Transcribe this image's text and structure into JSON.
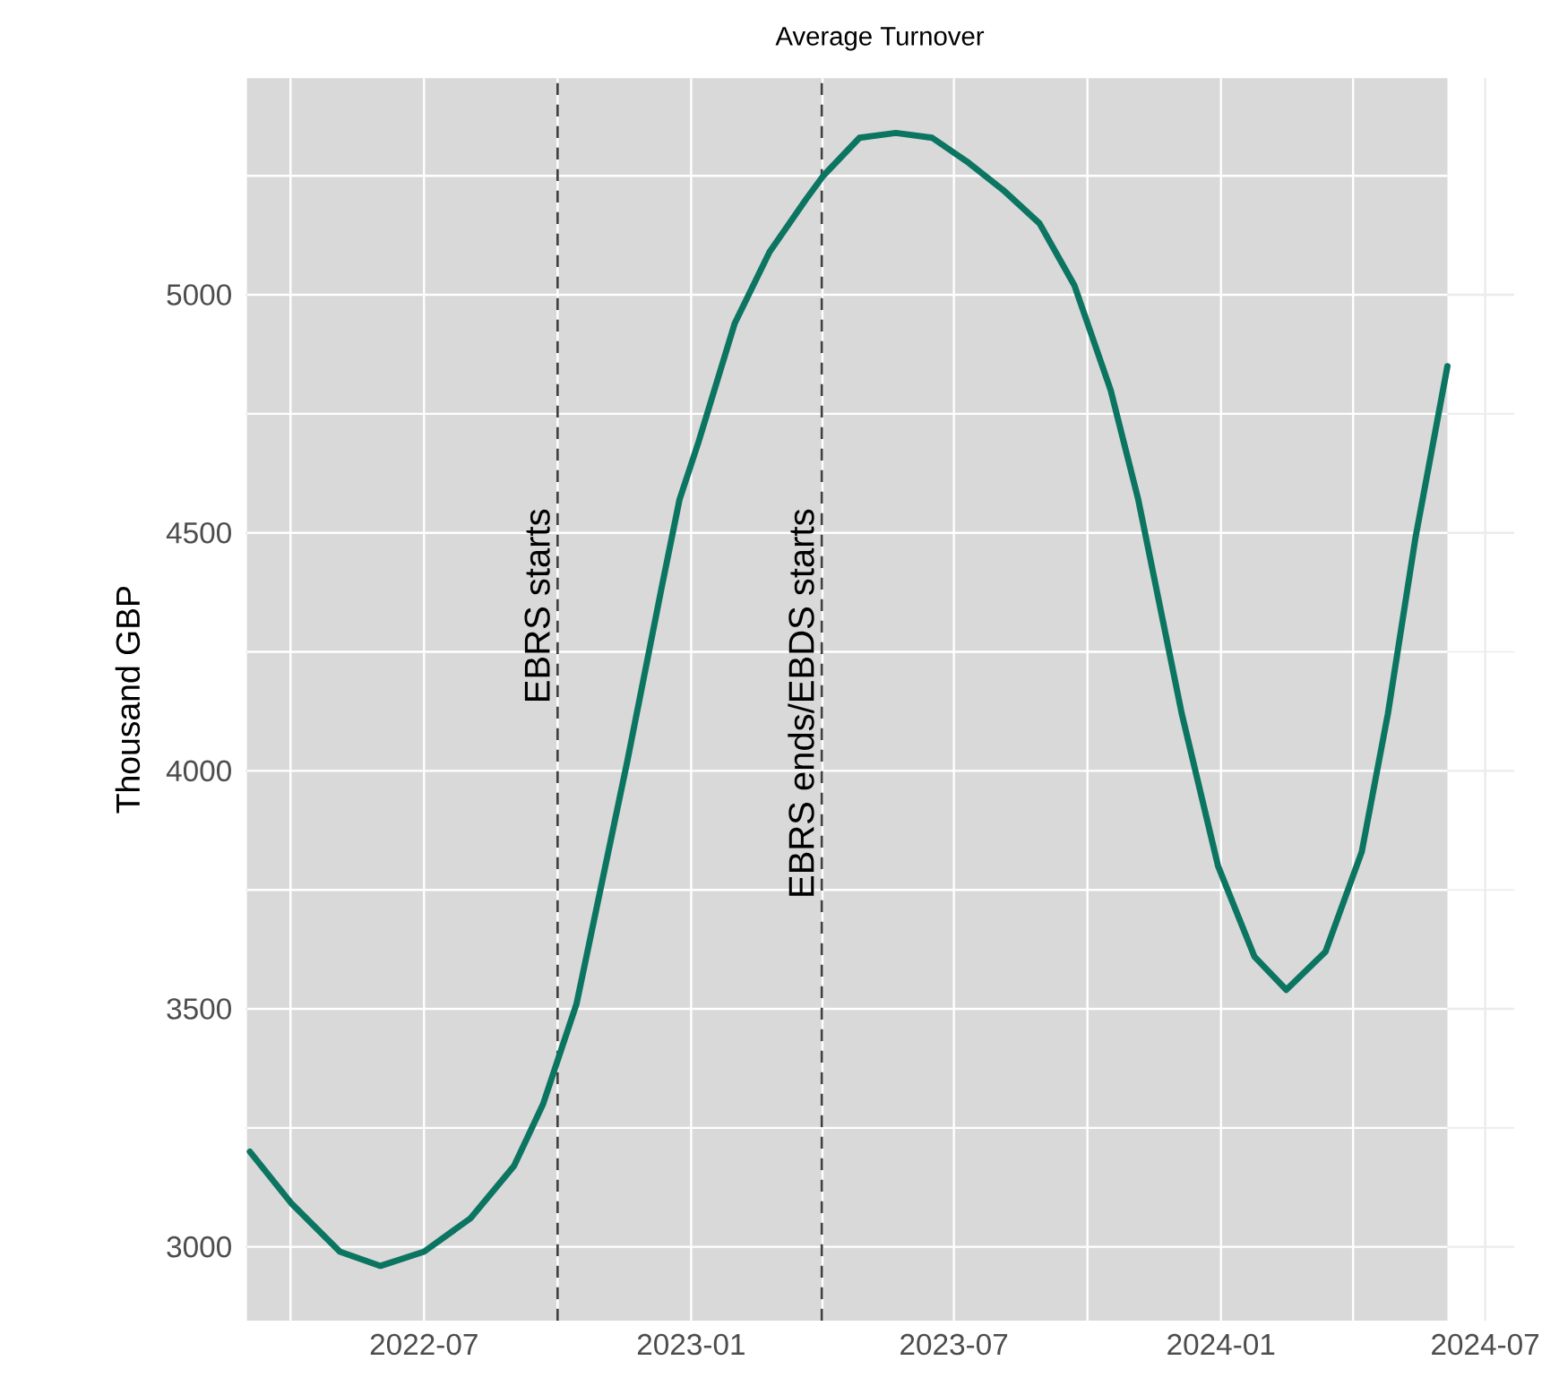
{
  "chart_data": {
    "type": "line",
    "title": "Average Turnover",
    "ylabel": "Thousand GBP",
    "xlim": [
      "2022-02-28",
      "2024-07-21"
    ],
    "ylim": [
      2845,
      5455
    ],
    "xticks": [
      {
        "value": "2022-07-01",
        "label": "2022-07"
      },
      {
        "value": "2023-01-01",
        "label": "2023-01"
      },
      {
        "value": "2023-07-01",
        "label": "2023-07"
      },
      {
        "value": "2024-01-01",
        "label": "2024-01"
      },
      {
        "value": "2024-07-01",
        "label": "2024-07"
      }
    ],
    "yticks": [
      3000,
      3500,
      4000,
      4500,
      5000
    ],
    "grid": true,
    "legend": false,
    "marker": "none",
    "line_style": "solid",
    "series": [
      {
        "color": "#0b7561",
        "x": [
          "2022-03-03",
          "2022-04-01",
          "2022-05-04",
          "2022-06-01",
          "2022-07-01",
          "2022-08-02",
          "2022-09-01",
          "2022-09-21",
          "2022-10-03",
          "2022-10-14",
          "2022-11-18",
          "2022-12-12",
          "2022-12-24",
          "2023-01-06",
          "2023-01-31",
          "2023-02-24",
          "2023-03-21",
          "2023-04-02",
          "2023-04-27",
          "2023-05-22",
          "2023-06-16",
          "2023-07-10",
          "2023-08-04",
          "2023-08-29",
          "2023-09-22",
          "2023-10-17",
          "2023-11-05",
          "2023-12-05",
          "2023-12-30",
          "2024-01-24",
          "2024-02-15",
          "2024-03-13",
          "2024-04-07",
          "2024-04-25",
          "2024-05-14",
          "2024-06-05"
        ],
        "values": [
          3200,
          3090,
          2990,
          2960,
          2990,
          3060,
          3170,
          3300,
          3410,
          3510,
          4020,
          4390,
          4570,
          4690,
          4940,
          5090,
          5200,
          5250,
          5330,
          5340,
          5330,
          5280,
          5220,
          5150,
          5020,
          4800,
          4570,
          4120,
          3800,
          3610,
          3540,
          3620,
          3830,
          4120,
          4490,
          4850
        ]
      }
    ],
    "ref_lines": [
      {
        "axis": "x",
        "value": "2022-10-01",
        "label": "EBRS starts",
        "color": "#404040",
        "line_style": "dashed"
      },
      {
        "axis": "x",
        "value": "2023-04-01",
        "label": "EBRS ends/EBDS starts",
        "color": "#404040",
        "line_style": "dashed"
      }
    ],
    "bands": [
      {
        "axis": "x",
        "from": "2022-03-01",
        "to": "2024-06-05",
        "color": "#d9d9d9"
      }
    ]
  }
}
